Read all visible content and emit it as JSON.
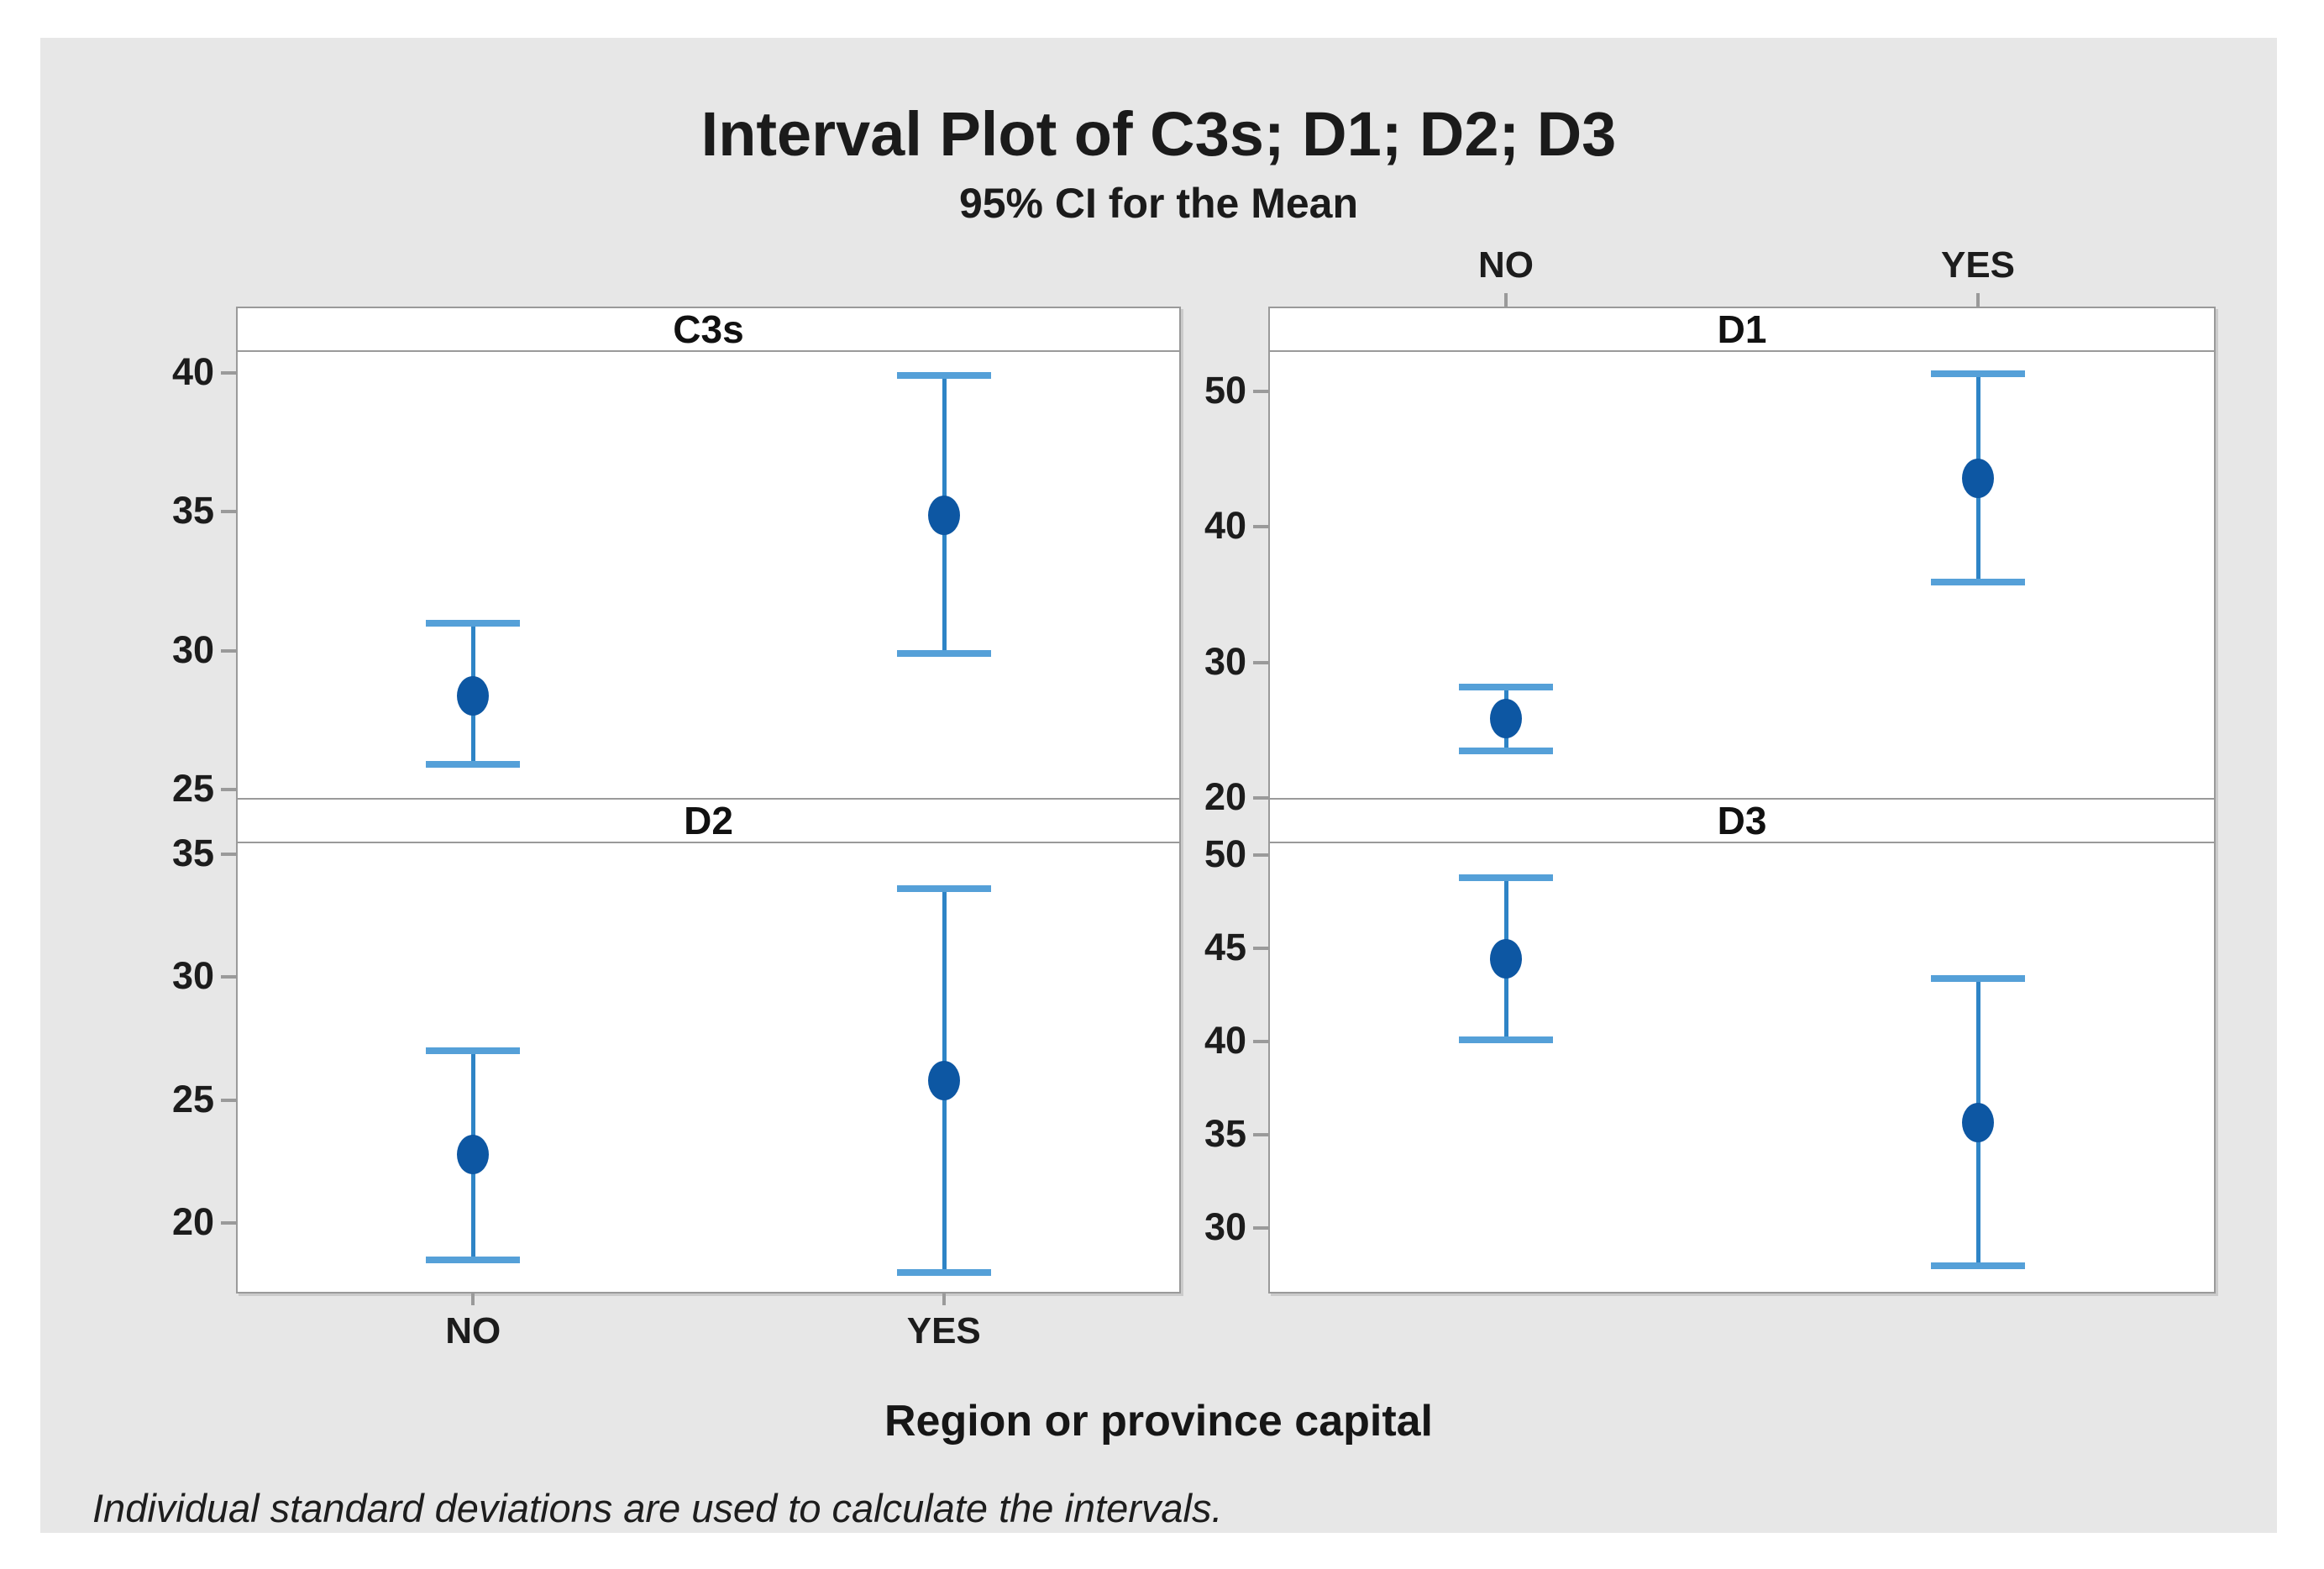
{
  "title": "Interval Plot of C3s; D1; D2; D3",
  "subtitle": "95% CI for the Mean",
  "x_axis_label": "Region or province capital",
  "footnote": "Individual standard deviations are used to calculate the intervals.",
  "colors": {
    "figure_background": "#e7e7e7",
    "page_background": "#ffffff",
    "panel_background": "#ffffff",
    "panel_border": "#9a9a9a",
    "interval_line": "#2e84c6",
    "interval_cap": "#55a0d8",
    "mean_marker": "#0d57a3",
    "text": "#1b1b1b"
  },
  "chart_data": {
    "type": "interval-plot",
    "title": "Interval Plot of C3s; D1; D2; D3",
    "subtitle": "95% CI for the Mean",
    "ci_level": "95%",
    "group_variable": "Region or province capital",
    "categories": [
      "NO",
      "YES"
    ],
    "legend_position": "none",
    "grid": false,
    "panels": [
      {
        "name": "C3s",
        "position": "top-left",
        "ylim": [
          24.7,
          40.75
        ],
        "yticks": [
          25,
          30,
          35,
          40
        ],
        "points": [
          {
            "category": "NO",
            "mean": 28.4,
            "ci_low": 25.9,
            "ci_high": 31.0
          },
          {
            "category": "YES",
            "mean": 34.9,
            "ci_low": 29.9,
            "ci_high": 39.9
          }
        ]
      },
      {
        "name": "D1",
        "position": "top-right",
        "ylim": [
          20.0,
          52.9
        ],
        "yticks": [
          20,
          30,
          40,
          50
        ],
        "points": [
          {
            "category": "NO",
            "mean": 25.9,
            "ci_low": 23.5,
            "ci_high": 28.2
          },
          {
            "category": "YES",
            "mean": 43.6,
            "ci_low": 35.9,
            "ci_high": 51.3
          }
        ]
      },
      {
        "name": "D2",
        "position": "bottom-left",
        "ylim": [
          17.2,
          35.45
        ],
        "yticks": [
          20,
          25,
          30,
          35
        ],
        "points": [
          {
            "category": "NO",
            "mean": 22.8,
            "ci_low": 18.5,
            "ci_high": 27.0
          },
          {
            "category": "YES",
            "mean": 25.8,
            "ci_low": 18.0,
            "ci_high": 33.6
          }
        ]
      },
      {
        "name": "D3",
        "position": "bottom-right",
        "ylim": [
          26.6,
          50.65
        ],
        "yticks": [
          30,
          35,
          40,
          45,
          50
        ],
        "points": [
          {
            "category": "NO",
            "mean": 44.5,
            "ci_low": 40.1,
            "ci_high": 48.8
          },
          {
            "category": "YES",
            "mean": 35.7,
            "ci_low": 28.0,
            "ci_high": 43.4
          }
        ]
      }
    ]
  }
}
